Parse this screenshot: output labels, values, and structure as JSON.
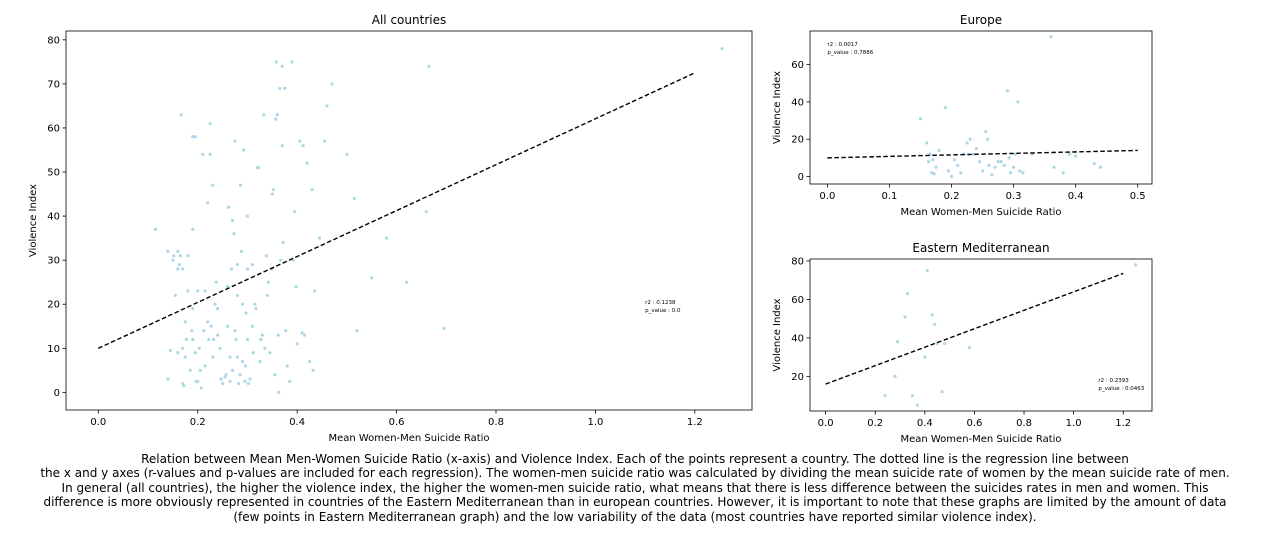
{
  "chart_data": [
    {
      "id": "all",
      "type": "scatter",
      "title": "All countries",
      "xlabel": "Mean Women-Men Suicide Ratio",
      "ylabel": "Violence Index",
      "xlim": [
        -0.065,
        1.315
      ],
      "ylim": [
        -4,
        82
      ],
      "xticks": [
        0.0,
        0.2,
        0.4,
        0.6,
        0.8,
        1.0,
        1.2
      ],
      "yticks": [
        0,
        10,
        20,
        30,
        40,
        50,
        60,
        70,
        80
      ],
      "xtick_decimals": 1,
      "point_color": "#add8e6",
      "regression": {
        "x": [
          0,
          1.2
        ],
        "y": [
          10,
          72.5
        ]
      },
      "annotation": [
        "r2 : 0.1238",
        "p_value : 0.0"
      ],
      "annotation_pos": [
        1.1,
        20
      ],
      "points": [
        [
          0.115,
          37
        ],
        [
          0.14,
          32
        ],
        [
          0.14,
          3
        ],
        [
          0.145,
          9.5
        ],
        [
          0.15,
          30
        ],
        [
          0.152,
          31
        ],
        [
          0.155,
          22
        ],
        [
          0.16,
          28
        ],
        [
          0.16,
          9
        ],
        [
          0.16,
          32
        ],
        [
          0.163,
          29
        ],
        [
          0.165,
          31
        ],
        [
          0.167,
          63
        ],
        [
          0.17,
          2
        ],
        [
          0.17,
          28
        ],
        [
          0.17,
          10
        ],
        [
          0.172,
          1.5
        ],
        [
          0.175,
          8
        ],
        [
          0.175,
          16
        ],
        [
          0.177,
          12
        ],
        [
          0.18,
          31
        ],
        [
          0.18,
          23
        ],
        [
          0.185,
          5
        ],
        [
          0.188,
          14
        ],
        [
          0.19,
          12
        ],
        [
          0.19,
          19
        ],
        [
          0.19,
          37
        ],
        [
          0.19,
          58
        ],
        [
          0.195,
          58
        ],
        [
          0.195,
          9
        ],
        [
          0.197,
          2.5
        ],
        [
          0.2,
          23
        ],
        [
          0.2,
          2.5
        ],
        [
          0.203,
          10
        ],
        [
          0.205,
          5
        ],
        [
          0.207,
          1
        ],
        [
          0.21,
          54
        ],
        [
          0.212,
          14
        ],
        [
          0.215,
          6
        ],
        [
          0.215,
          23
        ],
        [
          0.22,
          43
        ],
        [
          0.22,
          16
        ],
        [
          0.222,
          12
        ],
        [
          0.225,
          54
        ],
        [
          0.225,
          61
        ],
        [
          0.227,
          15
        ],
        [
          0.23,
          47
        ],
        [
          0.23,
          8
        ],
        [
          0.232,
          12
        ],
        [
          0.235,
          20
        ],
        [
          0.237,
          25
        ],
        [
          0.24,
          19
        ],
        [
          0.24,
          13
        ],
        [
          0.245,
          10
        ],
        [
          0.247,
          3
        ],
        [
          0.25,
          2
        ],
        [
          0.255,
          3.5
        ],
        [
          0.257,
          4
        ],
        [
          0.26,
          24
        ],
        [
          0.26,
          15
        ],
        [
          0.262,
          42
        ],
        [
          0.265,
          8
        ],
        [
          0.265,
          2.5
        ],
        [
          0.268,
          28
        ],
        [
          0.27,
          39
        ],
        [
          0.27,
          5
        ],
        [
          0.273,
          36
        ],
        [
          0.275,
          57
        ],
        [
          0.275,
          14
        ],
        [
          0.277,
          12
        ],
        [
          0.28,
          29
        ],
        [
          0.28,
          22
        ],
        [
          0.28,
          8
        ],
        [
          0.282,
          2
        ],
        [
          0.285,
          4
        ],
        [
          0.286,
          47
        ],
        [
          0.288,
          32
        ],
        [
          0.29,
          20
        ],
        [
          0.29,
          7
        ],
        [
          0.292,
          55
        ],
        [
          0.295,
          2.5
        ],
        [
          0.296,
          6
        ],
        [
          0.297,
          18
        ],
        [
          0.3,
          40
        ],
        [
          0.3,
          28
        ],
        [
          0.3,
          12
        ],
        [
          0.302,
          2
        ],
        [
          0.305,
          3
        ],
        [
          0.31,
          29
        ],
        [
          0.31,
          15
        ],
        [
          0.312,
          9
        ],
        [
          0.315,
          20
        ],
        [
          0.317,
          19
        ],
        [
          0.32,
          51
        ],
        [
          0.322,
          51
        ],
        [
          0.325,
          7
        ],
        [
          0.327,
          12
        ],
        [
          0.33,
          13
        ],
        [
          0.333,
          63
        ],
        [
          0.335,
          10
        ],
        [
          0.338,
          31
        ],
        [
          0.34,
          22
        ],
        [
          0.342,
          25
        ],
        [
          0.345,
          9
        ],
        [
          0.35,
          45
        ],
        [
          0.35,
          28
        ],
        [
          0.352,
          46
        ],
        [
          0.355,
          4
        ],
        [
          0.357,
          62
        ],
        [
          0.358,
          75
        ],
        [
          0.36,
          63
        ],
        [
          0.362,
          13
        ],
        [
          0.363,
          0
        ],
        [
          0.365,
          69
        ],
        [
          0.367,
          30
        ],
        [
          0.37,
          74
        ],
        [
          0.37,
          56
        ],
        [
          0.372,
          34
        ],
        [
          0.375,
          69
        ],
        [
          0.377,
          14
        ],
        [
          0.38,
          6
        ],
        [
          0.385,
          2.5
        ],
        [
          0.39,
          75
        ],
        [
          0.392,
          30
        ],
        [
          0.395,
          41
        ],
        [
          0.398,
          24
        ],
        [
          0.4,
          11
        ],
        [
          0.405,
          57
        ],
        [
          0.41,
          13.5
        ],
        [
          0.412,
          56
        ],
        [
          0.415,
          13
        ],
        [
          0.42,
          52
        ],
        [
          0.425,
          7
        ],
        [
          0.43,
          46
        ],
        [
          0.432,
          5
        ],
        [
          0.435,
          23
        ],
        [
          0.445,
          35
        ],
        [
          0.455,
          57
        ],
        [
          0.46,
          65
        ],
        [
          0.47,
          70
        ],
        [
          0.5,
          54
        ],
        [
          0.515,
          44
        ],
        [
          0.52,
          14
        ],
        [
          0.55,
          26
        ],
        [
          0.58,
          35
        ],
        [
          0.62,
          25
        ],
        [
          0.66,
          41
        ],
        [
          0.665,
          74
        ],
        [
          0.695,
          14.5
        ],
        [
          1.255,
          78
        ]
      ]
    },
    {
      "id": "europe",
      "type": "scatter",
      "title": "Europe",
      "xlabel": "Mean Women-Men Suicide Ratio",
      "ylabel": "Violence Index",
      "xlim": [
        -0.028,
        0.523
      ],
      "ylim": [
        -4,
        78
      ],
      "xticks": [
        0.0,
        0.1,
        0.2,
        0.3,
        0.4,
        0.5
      ],
      "yticks": [
        0,
        20,
        40,
        60
      ],
      "xtick_decimals": 1,
      "point_color": "#add8e6",
      "regression": {
        "x": [
          0,
          0.5
        ],
        "y": [
          10,
          14
        ]
      },
      "annotation": [
        "r2 : 0.0017",
        "p_value : 0.7886"
      ],
      "annotation_pos": [
        0.0,
        70
      ],
      "points": [
        [
          0.15,
          31
        ],
        [
          0.16,
          18
        ],
        [
          0.163,
          8
        ],
        [
          0.165,
          12
        ],
        [
          0.168,
          2
        ],
        [
          0.17,
          9
        ],
        [
          0.172,
          1.5
        ],
        [
          0.175,
          5
        ],
        [
          0.18,
          14
        ],
        [
          0.19,
          37
        ],
        [
          0.195,
          3
        ],
        [
          0.2,
          0
        ],
        [
          0.205,
          9
        ],
        [
          0.21,
          6
        ],
        [
          0.215,
          2
        ],
        [
          0.22,
          12
        ],
        [
          0.225,
          18
        ],
        [
          0.23,
          20
        ],
        [
          0.235,
          12
        ],
        [
          0.24,
          15
        ],
        [
          0.245,
          8
        ],
        [
          0.25,
          3
        ],
        [
          0.255,
          24
        ],
        [
          0.258,
          20
        ],
        [
          0.26,
          6
        ],
        [
          0.265,
          1
        ],
        [
          0.27,
          5
        ],
        [
          0.275,
          8
        ],
        [
          0.28,
          8
        ],
        [
          0.285,
          6
        ],
        [
          0.29,
          46
        ],
        [
          0.293,
          10
        ],
        [
          0.295,
          2
        ],
        [
          0.3,
          5
        ],
        [
          0.303,
          12
        ],
        [
          0.307,
          40
        ],
        [
          0.31,
          3
        ],
        [
          0.315,
          2
        ],
        [
          0.33,
          12
        ],
        [
          0.36,
          75
        ],
        [
          0.365,
          5
        ],
        [
          0.38,
          2
        ],
        [
          0.39,
          12
        ],
        [
          0.4,
          11
        ],
        [
          0.43,
          7
        ],
        [
          0.44,
          5
        ]
      ]
    },
    {
      "id": "eastmed",
      "type": "scatter",
      "title": "Eastern Mediterranean",
      "xlabel": "Mean Women-Men Suicide Ratio",
      "ylabel": "Violence Index",
      "xlim": [
        -0.063,
        1.316
      ],
      "ylim": [
        2,
        81
      ],
      "xticks": [
        0.0,
        0.2,
        0.4,
        0.6,
        0.8,
        1.0,
        1.2
      ],
      "yticks": [
        20,
        40,
        60,
        80
      ],
      "xtick_decimals": 1,
      "point_color": "#add8e6",
      "regression": {
        "x": [
          0,
          1.2
        ],
        "y": [
          16,
          73.5
        ]
      },
      "annotation": [
        "r2 : 0.2393",
        "p_value : 0.0463"
      ],
      "annotation_pos": [
        1.1,
        17
      ],
      "points": [
        [
          0.24,
          10
        ],
        [
          0.28,
          20
        ],
        [
          0.29,
          38
        ],
        [
          0.32,
          51
        ],
        [
          0.33,
          63
        ],
        [
          0.35,
          10
        ],
        [
          0.37,
          5
        ],
        [
          0.4,
          30
        ],
        [
          0.41,
          75
        ],
        [
          0.43,
          52
        ],
        [
          0.44,
          47
        ],
        [
          0.45,
          37
        ],
        [
          0.47,
          12
        ],
        [
          0.48,
          37
        ],
        [
          0.58,
          35
        ],
        [
          1.25,
          78
        ]
      ]
    }
  ],
  "caption": [
    "Relation between Mean Men-Women Suicide Ratio (x-axis) and Violence Index. Each of the points represent a country. The dotted line is the regression line between",
    "the x and y axes (r-values and p-values are included for each regression). The women-men suicide ratio was calculated by dividing the mean suicide rate of women by the mean suicide rate of men.",
    "In general (all countries), the higher the violence index, the higher the women-men suicide ratio, what means that there is less difference between the suicides rates in men and women. This",
    "difference is more obviously represented in countries of the Eastern Mediterranean than in european countries. However, it is important to note that these graphs are limited by the amount of data",
    "(few points in Eastern Mediterranean graph) and the low variability of the data (most countries have reported similar violence index)."
  ]
}
